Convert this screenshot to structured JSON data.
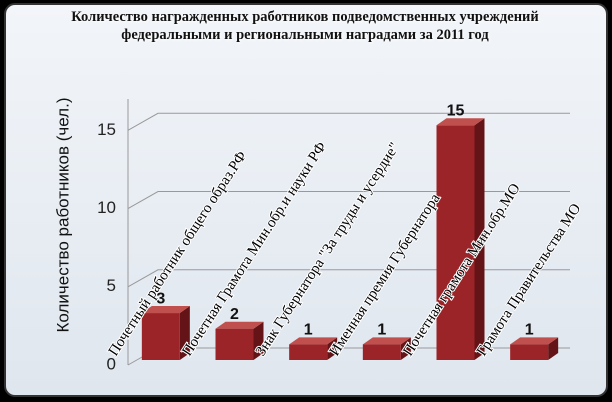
{
  "chart_data": {
    "type": "bar3d",
    "title": "Количество награжденных работников подведомственных учреждений федеральными и региональными наградами за 2011 год",
    "y_label": "Количество работников  (чел.)",
    "categories": [
      "Почетный работник  общего образ.РФ",
      "Почетная Грамота Мин.обр.и науки РФ",
      "Знак Губернатора \"За труды и усердие\"",
      "Именная премия Губернатора",
      "Почетная грамота Мин.обр.МО",
      "Грамота Правительства МО"
    ],
    "values": [
      3,
      2,
      1,
      1,
      15,
      1
    ],
    "color": "#9b2428",
    "ylim": [
      0,
      17
    ],
    "yticks": [
      0,
      5,
      10,
      15
    ],
    "grid": true
  }
}
